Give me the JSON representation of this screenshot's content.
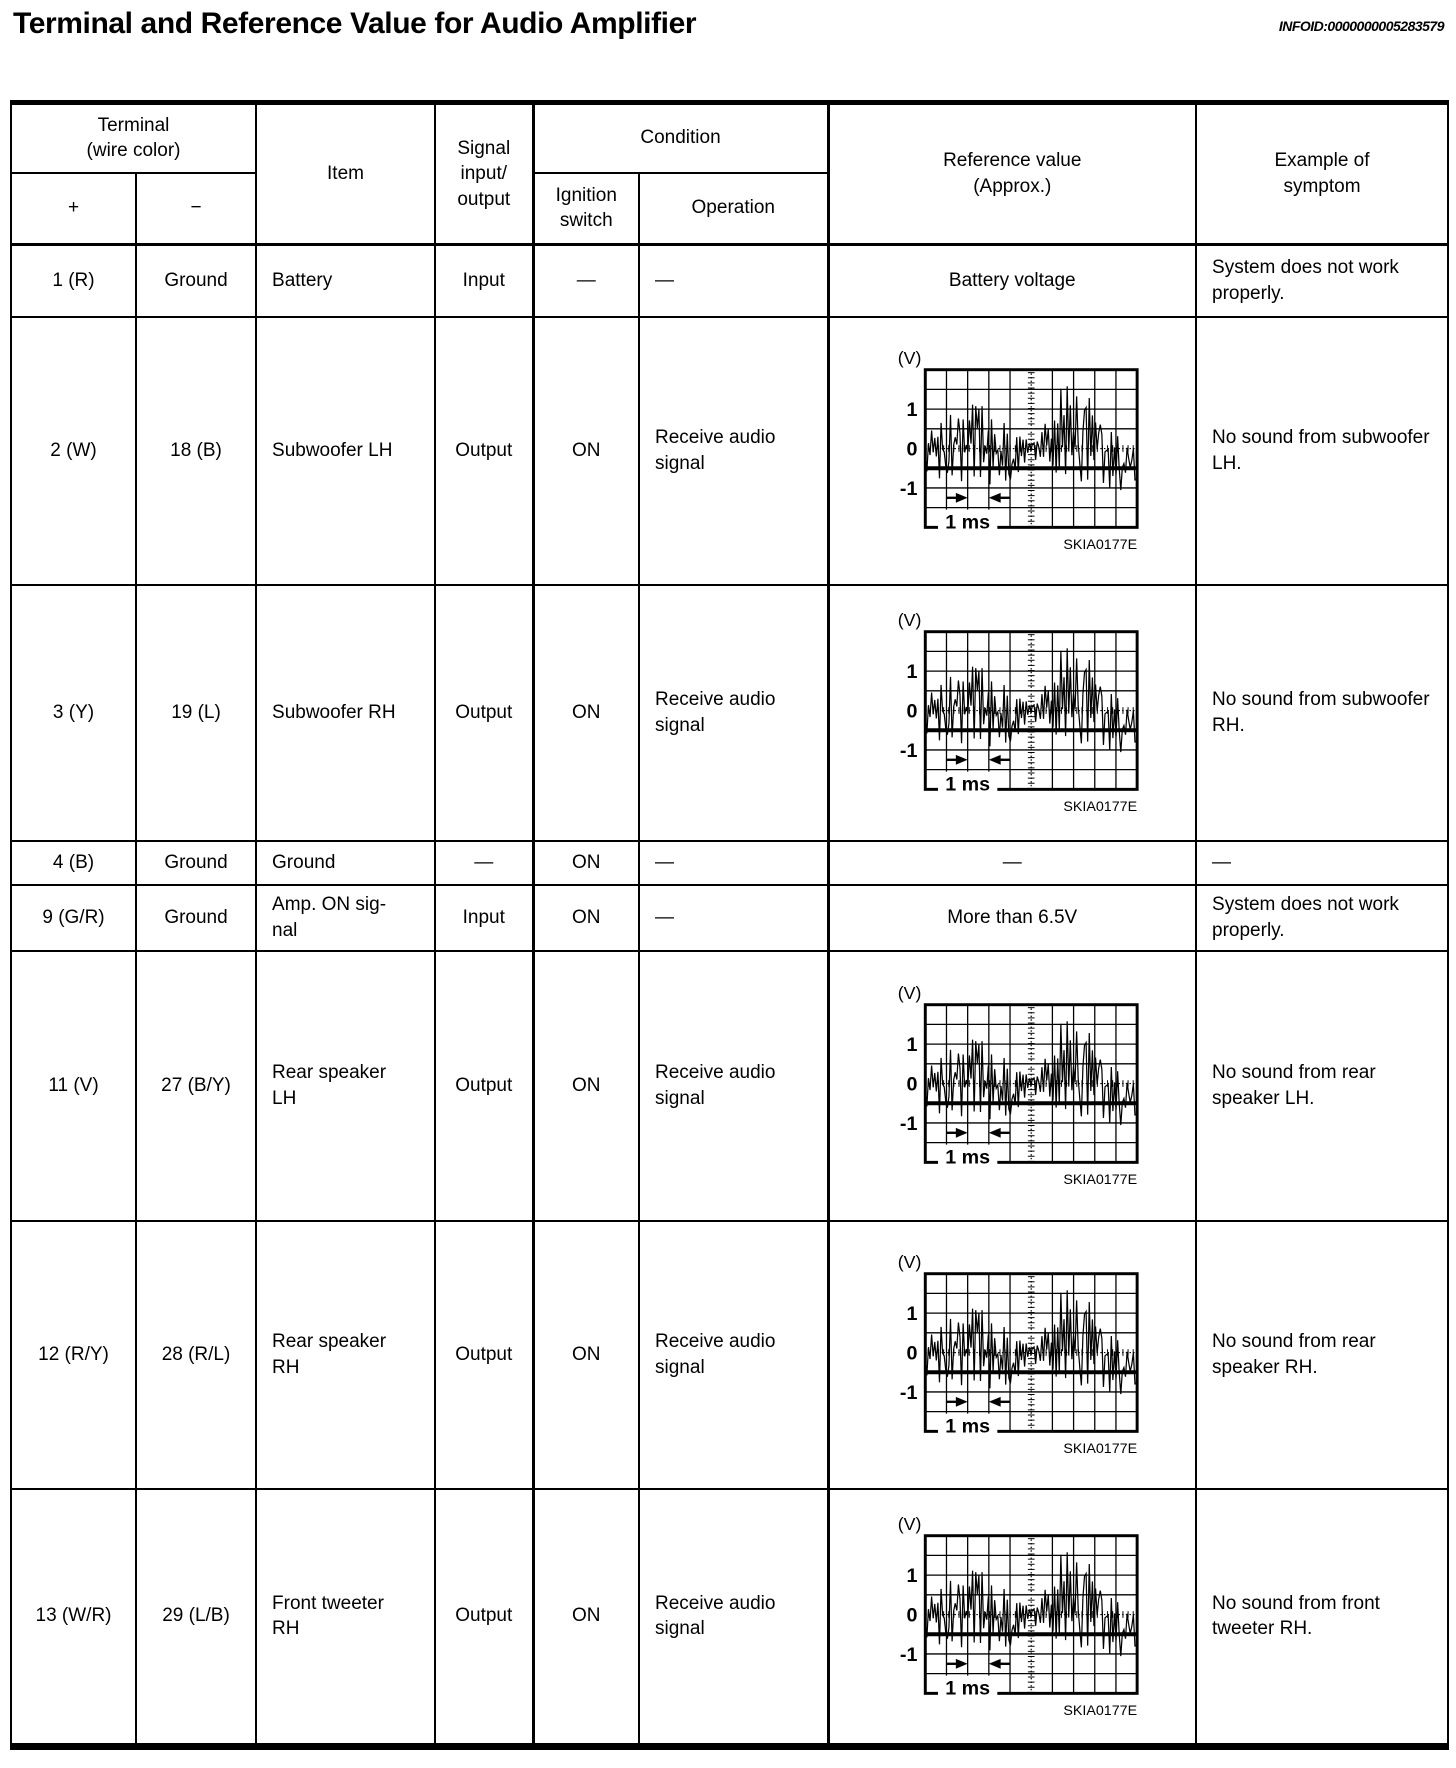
{
  "page": {
    "title": "Terminal and Reference Value for Audio Amplifier",
    "infoid": "INFOID:0000000005283579"
  },
  "table": {
    "headers": {
      "terminal": "Terminal\n(wire color)",
      "plus": "+",
      "minus": "−",
      "item": "Item",
      "signal": "Signal\ninput/\noutput",
      "condition": "Condition",
      "ignition": "Ignition\nswitch",
      "operation": "Operation",
      "reference": "Reference value\n(Approx.)",
      "symptom": "Example of\nsymptom"
    },
    "waveform": {
      "y_unit": "(V)",
      "y_labels": [
        "1",
        "0",
        "-1"
      ],
      "time_label": "1 ms",
      "caption": "SKIA0177E"
    },
    "rows": [
      {
        "plus": "1 (R)",
        "minus": "Ground",
        "item": "Battery",
        "signal": "Input",
        "ignition": "—",
        "operation": "—",
        "reference_type": "text",
        "reference": "Battery voltage",
        "symptom": "System does not work properly."
      },
      {
        "plus": "2 (W)",
        "minus": "18 (B)",
        "item": "Subwoofer LH",
        "signal": "Output",
        "ignition": "ON",
        "operation": "Receive audio signal",
        "reference_type": "waveform",
        "reference": "",
        "symptom": "No sound from subwoofer LH."
      },
      {
        "plus": "3 (Y)",
        "minus": "19 (L)",
        "item": "Subwoofer RH",
        "signal": "Output",
        "ignition": "ON",
        "operation": "Receive audio signal",
        "reference_type": "waveform",
        "reference": "",
        "symptom": "No sound from subwoofer RH."
      },
      {
        "plus": "4 (B)",
        "minus": "Ground",
        "item": "Ground",
        "signal": "—",
        "ignition": "ON",
        "operation": "—",
        "reference_type": "text",
        "reference": "—",
        "symptom": "—"
      },
      {
        "plus": "9 (G/R)",
        "minus": "Ground",
        "item": "Amp. ON sig-\nnal",
        "signal": "Input",
        "ignition": "ON",
        "operation": "—",
        "reference_type": "text",
        "reference": "More than 6.5V",
        "symptom": "System does not work properly."
      },
      {
        "plus": "11 (V)",
        "minus": "27 (B/Y)",
        "item": "Rear speaker\nLH",
        "signal": "Output",
        "ignition": "ON",
        "operation": "Receive audio signal",
        "reference_type": "waveform",
        "reference": "",
        "symptom": "No sound from rear speaker LH."
      },
      {
        "plus": "12 (R/Y)",
        "minus": "28 (R/L)",
        "item": "Rear speaker\nRH",
        "signal": "Output",
        "ignition": "ON",
        "operation": "Receive audio signal",
        "reference_type": "waveform",
        "reference": "",
        "symptom": "No sound from rear speaker RH."
      },
      {
        "plus": "13 (W/R)",
        "minus": "29 (L/B)",
        "item": "Front tweeter\nRH",
        "signal": "Output",
        "ignition": "ON",
        "operation": "Receive audio signal",
        "reference_type": "waveform",
        "reference": "",
        "symptom": "No sound from front tweeter RH."
      }
    ]
  }
}
